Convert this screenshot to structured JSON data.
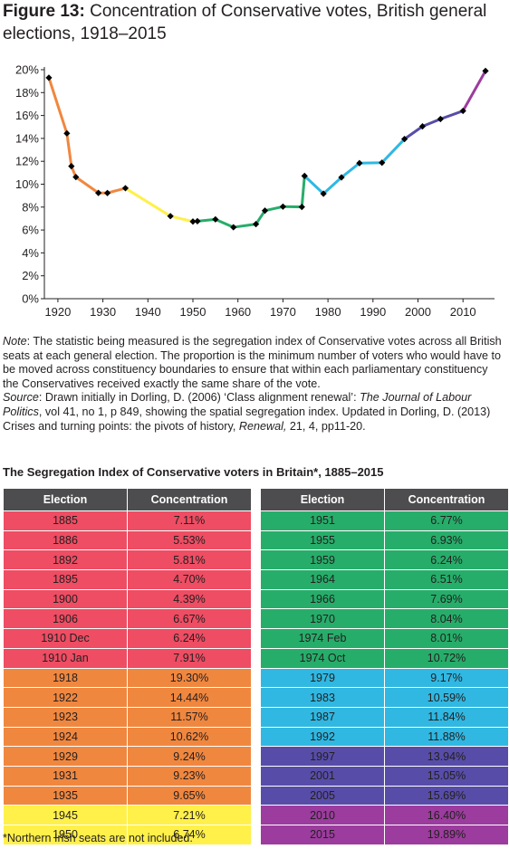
{
  "figure": {
    "label": "Figure 13:",
    "title": "Concentration of Conservative votes, British general elections, 1918–2015"
  },
  "colors": {
    "1910s": "#ee4d63",
    "1920s_30s": "#f0873f",
    "1940s": "#fff04a",
    "1950s_70s": "#27ad6a",
    "1980s_90s": "#30b8e2",
    "1997_2005": "#574da8",
    "2010s": "#9c3c9e",
    "header": "#4d4d4f"
  },
  "chart_data": {
    "type": "line",
    "title": "Concentration of Conservative votes, British general elections, 1918–2015",
    "xlabel": "",
    "ylabel": "",
    "xlim": [
      1917,
      2017
    ],
    "ylim": [
      0,
      20
    ],
    "x_ticks": [
      "1920",
      "1930",
      "1940",
      "1950",
      "1960",
      "1970",
      "1980",
      "1990",
      "2000",
      "2010"
    ],
    "y_ticks": [
      "0%",
      "2%",
      "4%",
      "6%",
      "8%",
      "10%",
      "12%",
      "14%",
      "16%",
      "18%",
      "20%"
    ],
    "grid": false,
    "marker": "diamond",
    "x": [
      1918,
      1922,
      1923,
      1924,
      1929,
      1931,
      1935,
      1945,
      1950,
      1951,
      1955,
      1959,
      1964,
      1966,
      1970,
      1974.2,
      1974.8,
      1979,
      1983,
      1987,
      1992,
      1997,
      2001,
      2005,
      2010,
      2015
    ],
    "values": [
      19.3,
      14.44,
      11.57,
      10.62,
      9.24,
      9.23,
      9.65,
      7.21,
      6.74,
      6.77,
      6.93,
      6.24,
      6.51,
      7.69,
      8.04,
      8.01,
      10.72,
      9.17,
      10.59,
      11.84,
      11.88,
      13.94,
      15.05,
      15.69,
      16.4,
      19.89
    ],
    "segment_groups": [
      "1920s_30s",
      "1920s_30s",
      "1920s_30s",
      "1920s_30s",
      "1920s_30s",
      "1920s_30s",
      "1940s",
      "1940s",
      "1940s",
      "1950s_70s",
      "1950s_70s",
      "1950s_70s",
      "1950s_70s",
      "1950s_70s",
      "1950s_70s",
      "1950s_70s",
      "1980s_90s",
      "1980s_90s",
      "1980s_90s",
      "1980s_90s",
      "1980s_90s",
      "1997_2005",
      "1997_2005",
      "1997_2005",
      "2010s"
    ]
  },
  "note": {
    "note_label": "Note",
    "note_text": ": The statistic being measured is the segregation index of Conservative votes across all British seats at each general election. The proportion is the minimum number of voters who would have to be moved across constituency boundaries to ensure that within each parliamentary constituency the Conservatives received exactly the same share of the vote.",
    "source_label": "Source",
    "source_text_1": ": Drawn initially in Dorling, D. (2006) ‘Class alignment renewal’: ",
    "source_journal": "The Journal of Labour Politics",
    "source_text_2": ", vol 41, no 1, p 849, showing the spatial segregation index. Updated in Dorling, D. (2013) Crises and turning points: the pivots of history, ",
    "source_renewal": "Renewal,",
    "source_text_3": " 21, 4, pp11-20."
  },
  "table": {
    "title": "The Segregation Index of Conservative voters in Britain*, 1885–2015",
    "header_election": "Election",
    "header_concentration": "Concentration",
    "left_rows": [
      {
        "election": "1885",
        "concentration": "7.11%",
        "group": "1910s"
      },
      {
        "election": "1886",
        "concentration": "5.53%",
        "group": "1910s"
      },
      {
        "election": "1892",
        "concentration": "5.81%",
        "group": "1910s"
      },
      {
        "election": "1895",
        "concentration": "4.70%",
        "group": "1910s"
      },
      {
        "election": "1900",
        "concentration": "4.39%",
        "group": "1910s"
      },
      {
        "election": "1906",
        "concentration": "6.67%",
        "group": "1910s"
      },
      {
        "election": "1910 Dec",
        "concentration": "6.24%",
        "group": "1910s"
      },
      {
        "election": "1910 Jan",
        "concentration": "7.91%",
        "group": "1910s"
      },
      {
        "election": "1918",
        "concentration": "19.30%",
        "group": "1920s_30s"
      },
      {
        "election": "1922",
        "concentration": "14.44%",
        "group": "1920s_30s"
      },
      {
        "election": "1923",
        "concentration": "11.57%",
        "group": "1920s_30s"
      },
      {
        "election": "1924",
        "concentration": "10.62%",
        "group": "1920s_30s"
      },
      {
        "election": "1929",
        "concentration": "9.24%",
        "group": "1920s_30s"
      },
      {
        "election": "1931",
        "concentration": "9.23%",
        "group": "1920s_30s"
      },
      {
        "election": "1935",
        "concentration": "9.65%",
        "group": "1920s_30s"
      },
      {
        "election": "1945",
        "concentration": "7.21%",
        "group": "1940s"
      },
      {
        "election": "1950",
        "concentration": "6.74%",
        "group": "1940s"
      }
    ],
    "right_rows": [
      {
        "election": "1951",
        "concentration": "6.77%",
        "group": "1950s_70s"
      },
      {
        "election": "1955",
        "concentration": "6.93%",
        "group": "1950s_70s"
      },
      {
        "election": "1959",
        "concentration": "6.24%",
        "group": "1950s_70s"
      },
      {
        "election": "1964",
        "concentration": "6.51%",
        "group": "1950s_70s"
      },
      {
        "election": "1966",
        "concentration": "7.69%",
        "group": "1950s_70s"
      },
      {
        "election": "1970",
        "concentration": "8.04%",
        "group": "1950s_70s"
      },
      {
        "election": "1974 Feb",
        "concentration": "8.01%",
        "group": "1950s_70s"
      },
      {
        "election": "1974 Oct",
        "concentration": "10.72%",
        "group": "1950s_70s"
      },
      {
        "election": "1979",
        "concentration": "9.17%",
        "group": "1980s_90s"
      },
      {
        "election": "1983",
        "concentration": "10.59%",
        "group": "1980s_90s"
      },
      {
        "election": "1987",
        "concentration": "11.84%",
        "group": "1980s_90s"
      },
      {
        "election": "1992",
        "concentration": "11.88%",
        "group": "1980s_90s"
      },
      {
        "election": "1997",
        "concentration": "13.94%",
        "group": "1997_2005"
      },
      {
        "election": "2001",
        "concentration": "15.05%",
        "group": "1997_2005"
      },
      {
        "election": "2005",
        "concentration": "15.69%",
        "group": "1997_2005"
      },
      {
        "election": "2010",
        "concentration": "16.40%",
        "group": "2010s"
      },
      {
        "election": "2015",
        "concentration": "19.89%",
        "group": "2010s"
      }
    ],
    "footnote": "*Northern Irish seats are not included."
  }
}
